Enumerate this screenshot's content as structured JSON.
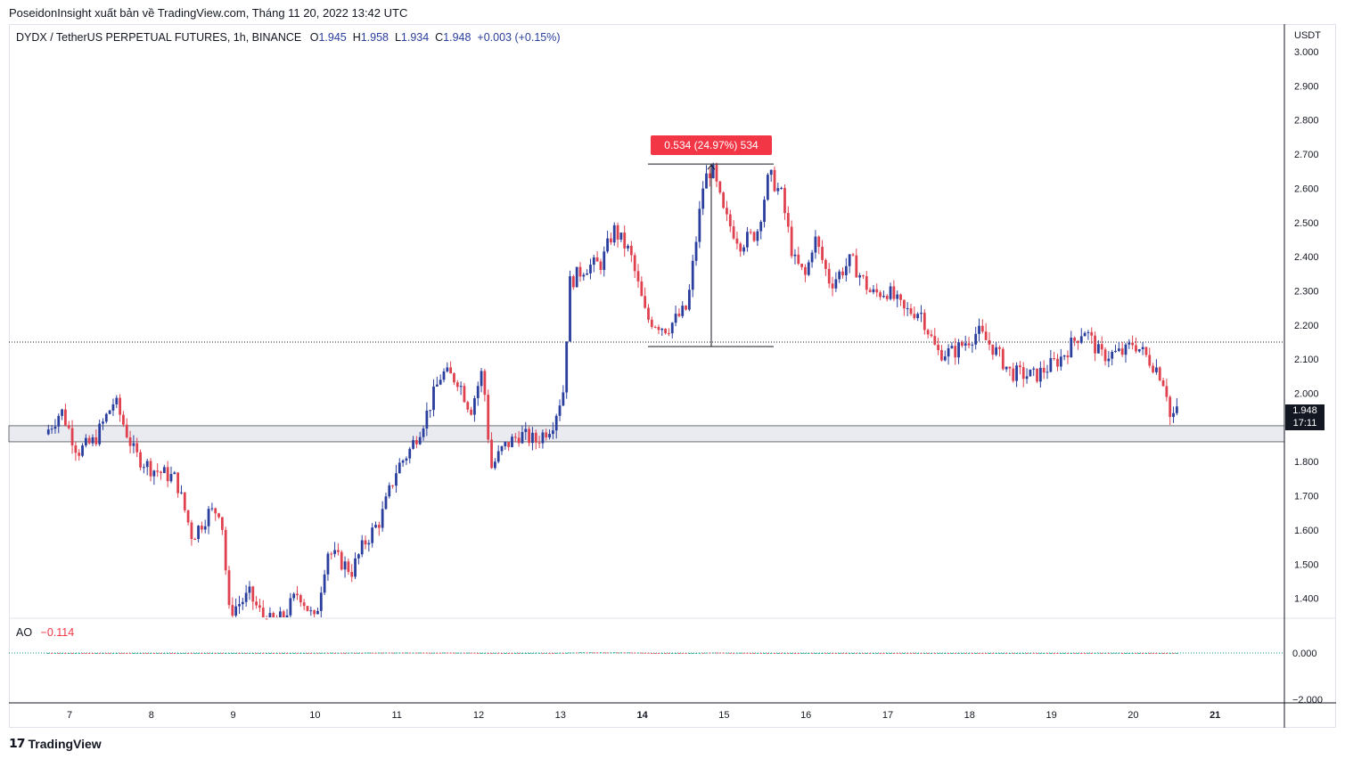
{
  "header": {
    "publisher_line": "PoseidonInsight xuất bản về TradingView.com, Tháng 11 20, 2022 13:42 UTC"
  },
  "legend": {
    "symbol": "DYDX / TetherUS PERPETUAL FUTURES, 1h, BINANCE",
    "open": "1.945",
    "high": "1.958",
    "low": "1.934",
    "close": "1.948",
    "change": "+0.003 (+0.15%)"
  },
  "indicator": {
    "name": "AO",
    "value": "−0.114"
  },
  "price_axis": {
    "currency": "USDT",
    "last_price": "1.948",
    "countdown": "17:11"
  },
  "measure": {
    "label": "0.534 (24.97%) 534"
  },
  "footer": {
    "brand": "TradingView"
  },
  "colors": {
    "up": "#2a3e9e",
    "down": "#e0414f",
    "ao_up": "#089981",
    "ao_down": "#f23645",
    "zone": "#e9ebf1"
  },
  "chart_data": {
    "type": "candlestick",
    "y_axis": {
      "unit": "USDT",
      "ticks": [
        1.4,
        1.5,
        1.6,
        1.7,
        1.8,
        2.0,
        2.1,
        2.2,
        2.3,
        2.4,
        2.5,
        2.6,
        2.7,
        2.8,
        2.9,
        3.0
      ]
    },
    "x_axis": {
      "ticks": [
        "7",
        "8",
        "9",
        "10",
        "11",
        "12",
        "13",
        "14",
        "15",
        "16",
        "17",
        "18",
        "19",
        "20",
        "21"
      ]
    },
    "ao_axis": {
      "ticks": [
        "0.000",
        "−2.000"
      ]
    },
    "horizontal_line": 2.15,
    "support_zone": [
      1.858,
      1.905
    ],
    "measurement": {
      "from": 2.137,
      "to": 2.671,
      "change": 0.534,
      "percent": 24.97
    },
    "close_path": [
      {
        "day": 6.7,
        "price": 1.88
      },
      {
        "day": 6.9,
        "price": 1.95
      },
      {
        "day": 7.1,
        "price": 1.83
      },
      {
        "day": 7.3,
        "price": 1.86
      },
      {
        "day": 7.55,
        "price": 1.98
      },
      {
        "day": 7.8,
        "price": 1.82
      },
      {
        "day": 8.0,
        "price": 1.78
      },
      {
        "day": 8.3,
        "price": 1.75
      },
      {
        "day": 8.5,
        "price": 1.58
      },
      {
        "day": 8.7,
        "price": 1.65
      },
      {
        "day": 8.85,
        "price": 1.66
      },
      {
        "day": 8.95,
        "price": 1.36
      },
      {
        "day": 9.2,
        "price": 1.41
      },
      {
        "day": 9.4,
        "price": 1.33
      },
      {
        "day": 9.6,
        "price": 1.34
      },
      {
        "day": 9.8,
        "price": 1.42
      },
      {
        "day": 10.0,
        "price": 1.33
      },
      {
        "day": 10.15,
        "price": 1.54
      },
      {
        "day": 10.3,
        "price": 1.51
      },
      {
        "day": 10.45,
        "price": 1.48
      },
      {
        "day": 10.6,
        "price": 1.56
      },
      {
        "day": 10.8,
        "price": 1.63
      },
      {
        "day": 11.0,
        "price": 1.78
      },
      {
        "day": 11.15,
        "price": 1.83
      },
      {
        "day": 11.35,
        "price": 1.93
      },
      {
        "day": 11.55,
        "price": 2.06
      },
      {
        "day": 11.75,
        "price": 2.04
      },
      {
        "day": 11.9,
        "price": 1.95
      },
      {
        "day": 12.05,
        "price": 2.07
      },
      {
        "day": 12.15,
        "price": 1.78
      },
      {
        "day": 12.3,
        "price": 1.84
      },
      {
        "day": 12.5,
        "price": 1.88
      },
      {
        "day": 12.7,
        "price": 1.86
      },
      {
        "day": 12.9,
        "price": 1.91
      },
      {
        "day": 13.05,
        "price": 2.02
      },
      {
        "day": 13.1,
        "price": 2.32
      },
      {
        "day": 13.3,
        "price": 2.37
      },
      {
        "day": 13.5,
        "price": 2.38
      },
      {
        "day": 13.65,
        "price": 2.48
      },
      {
        "day": 13.85,
        "price": 2.41
      },
      {
        "day": 14.05,
        "price": 2.22
      },
      {
        "day": 14.3,
        "price": 2.19
      },
      {
        "day": 14.55,
        "price": 2.25
      },
      {
        "day": 14.75,
        "price": 2.62
      },
      {
        "day": 14.85,
        "price": 2.66
      },
      {
        "day": 15.0,
        "price": 2.52
      },
      {
        "day": 15.2,
        "price": 2.44
      },
      {
        "day": 15.4,
        "price": 2.47
      },
      {
        "day": 15.55,
        "price": 2.64
      },
      {
        "day": 15.7,
        "price": 2.58
      },
      {
        "day": 15.85,
        "price": 2.39
      },
      {
        "day": 16.0,
        "price": 2.34
      },
      {
        "day": 16.1,
        "price": 2.46
      },
      {
        "day": 16.3,
        "price": 2.32
      },
      {
        "day": 16.55,
        "price": 2.39
      },
      {
        "day": 16.8,
        "price": 2.29
      },
      {
        "day": 17.0,
        "price": 2.3
      },
      {
        "day": 17.2,
        "price": 2.24
      },
      {
        "day": 17.4,
        "price": 2.24
      },
      {
        "day": 17.6,
        "price": 2.12
      },
      {
        "day": 17.8,
        "price": 2.12
      },
      {
        "day": 18.1,
        "price": 2.18
      },
      {
        "day": 18.3,
        "price": 2.13
      },
      {
        "day": 18.5,
        "price": 2.06
      },
      {
        "day": 18.8,
        "price": 2.05
      },
      {
        "day": 19.1,
        "price": 2.1
      },
      {
        "day": 19.4,
        "price": 2.19
      },
      {
        "day": 19.6,
        "price": 2.11
      },
      {
        "day": 19.9,
        "price": 2.12
      },
      {
        "day": 20.0,
        "price": 2.15
      },
      {
        "day": 20.3,
        "price": 2.07
      },
      {
        "day": 20.4,
        "price": 2.02
      },
      {
        "day": 20.45,
        "price": 1.93
      },
      {
        "day": 20.55,
        "price": 1.948
      }
    ],
    "ao_path": [
      {
        "day": 6.7,
        "value": 0.0
      },
      {
        "day": 7.5,
        "value": -0.05
      },
      {
        "day": 8.5,
        "value": -0.09
      },
      {
        "day": 9.0,
        "value": -0.14
      },
      {
        "day": 9.5,
        "value": -0.05
      },
      {
        "day": 10.2,
        "value": 0.03
      },
      {
        "day": 11.0,
        "value": 0.1
      },
      {
        "day": 11.8,
        "value": 0.08
      },
      {
        "day": 12.3,
        "value": -0.02
      },
      {
        "day": 12.9,
        "value": 0.0
      },
      {
        "day": 13.3,
        "value": 0.18
      },
      {
        "day": 13.8,
        "value": 0.17
      },
      {
        "day": 14.2,
        "value": -0.03
      },
      {
        "day": 14.5,
        "value": -0.05
      },
      {
        "day": 14.9,
        "value": 0.1
      },
      {
        "day": 15.5,
        "value": -0.03
      },
      {
        "day": 15.9,
        "value": -0.06
      },
      {
        "day": 16.5,
        "value": -0.04
      },
      {
        "day": 17.2,
        "value": -0.06
      },
      {
        "day": 18.0,
        "value": -0.04
      },
      {
        "day": 19.0,
        "value": 0.0
      },
      {
        "day": 19.6,
        "value": 0.02
      },
      {
        "day": 20.1,
        "value": -0.02
      },
      {
        "day": 20.55,
        "value": -0.114
      }
    ]
  }
}
